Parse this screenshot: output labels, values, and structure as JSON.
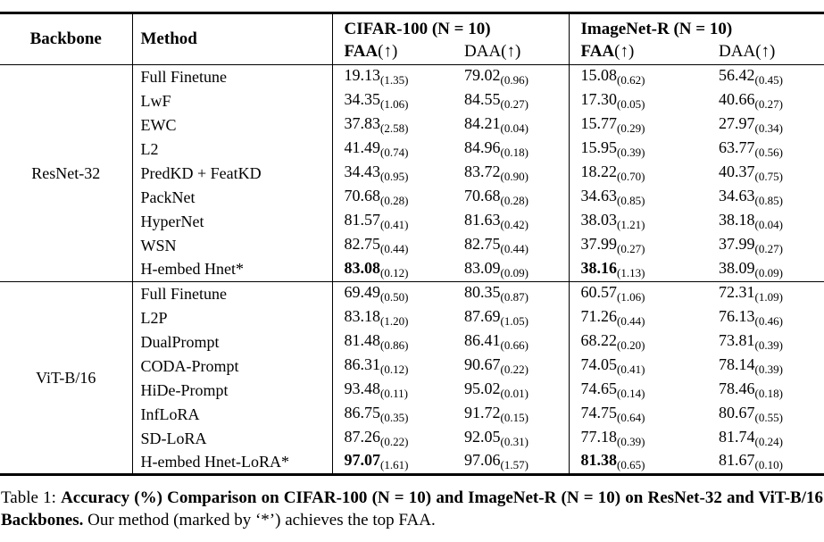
{
  "table": {
    "header": {
      "backbone": "Backbone",
      "method": "Method",
      "groups": [
        {
          "title": "CIFAR-100 (N = 10)"
        },
        {
          "title": "ImageNet-R (N = 10)"
        }
      ],
      "subcols": [
        {
          "label": "FAA",
          "arrow": "(↑)",
          "bold": true
        },
        {
          "label": "DAA",
          "arrow": "(↑)",
          "bold": false
        },
        {
          "label": "FAA",
          "arrow": "(↑)",
          "bold": true
        },
        {
          "label": "DAA",
          "arrow": "(↑)",
          "bold": false
        }
      ]
    },
    "blocks": [
      {
        "backbone": "ResNet-32",
        "rows": [
          {
            "method": "Full Finetune",
            "cells": [
              {
                "v": "19.13",
                "s": "(1.35)",
                "b": false
              },
              {
                "v": "79.02",
                "s": "(0.96)",
                "b": false
              },
              {
                "v": "15.08",
                "s": "(0.62)",
                "b": false
              },
              {
                "v": "56.42",
                "s": "(0.45)",
                "b": false
              }
            ]
          },
          {
            "method": "LwF",
            "cells": [
              {
                "v": "34.35",
                "s": "(1.06)",
                "b": false
              },
              {
                "v": "84.55",
                "s": "(0.27)",
                "b": false
              },
              {
                "v": "17.30",
                "s": "(0.05)",
                "b": false
              },
              {
                "v": "40.66",
                "s": "(0.27)",
                "b": false
              }
            ]
          },
          {
            "method": "EWC",
            "cells": [
              {
                "v": "37.83",
                "s": "(2.58)",
                "b": false
              },
              {
                "v": "84.21",
                "s": "(0.04)",
                "b": false
              },
              {
                "v": "15.77",
                "s": "(0.29)",
                "b": false
              },
              {
                "v": "27.97",
                "s": "(0.34)",
                "b": false
              }
            ]
          },
          {
            "method": "L2",
            "cells": [
              {
                "v": "41.49",
                "s": "(0.74)",
                "b": false
              },
              {
                "v": "84.96",
                "s": "(0.18)",
                "b": false
              },
              {
                "v": "15.95",
                "s": "(0.39)",
                "b": false
              },
              {
                "v": "63.77",
                "s": "(0.56)",
                "b": false
              }
            ]
          },
          {
            "method": "PredKD + FeatKD",
            "cells": [
              {
                "v": "34.43",
                "s": "(0.95)",
                "b": false
              },
              {
                "v": "83.72",
                "s": "(0.90)",
                "b": false
              },
              {
                "v": "18.22",
                "s": "(0.70)",
                "b": false
              },
              {
                "v": "40.37",
                "s": "(0.75)",
                "b": false
              }
            ]
          },
          {
            "method": "PackNet",
            "cells": [
              {
                "v": "70.68",
                "s": "(0.28)",
                "b": false
              },
              {
                "v": "70.68",
                "s": "(0.28)",
                "b": false
              },
              {
                "v": "34.63",
                "s": "(0.85)",
                "b": false
              },
              {
                "v": "34.63",
                "s": "(0.85)",
                "b": false
              }
            ]
          },
          {
            "method": "HyperNet",
            "cells": [
              {
                "v": "81.57",
                "s": "(0.41)",
                "b": false
              },
              {
                "v": "81.63",
                "s": "(0.42)",
                "b": false
              },
              {
                "v": "38.03",
                "s": "(1.21)",
                "b": false
              },
              {
                "v": "38.18",
                "s": "(0.04)",
                "b": false
              }
            ]
          },
          {
            "method": "WSN",
            "cells": [
              {
                "v": "82.75",
                "s": "(0.44)",
                "b": false
              },
              {
                "v": "82.75",
                "s": "(0.44)",
                "b": false
              },
              {
                "v": "37.99",
                "s": "(0.27)",
                "b": false
              },
              {
                "v": "37.99",
                "s": "(0.27)",
                "b": false
              }
            ]
          },
          {
            "method": "H-embed Hnet*",
            "cells": [
              {
                "v": "83.08",
                "s": "(0.12)",
                "b": true
              },
              {
                "v": "83.09",
                "s": "(0.09)",
                "b": false
              },
              {
                "v": "38.16",
                "s": "(1.13)",
                "b": true
              },
              {
                "v": "38.09",
                "s": "(0.09)",
                "b": false
              }
            ]
          }
        ]
      },
      {
        "backbone": "ViT-B/16",
        "rows": [
          {
            "method": "Full Finetune",
            "cells": [
              {
                "v": "69.49",
                "s": "(0.50)",
                "b": false
              },
              {
                "v": "80.35",
                "s": "(0.87)",
                "b": false
              },
              {
                "v": "60.57",
                "s": "(1.06)",
                "b": false
              },
              {
                "v": "72.31",
                "s": "(1.09)",
                "b": false
              }
            ]
          },
          {
            "method": "L2P",
            "cells": [
              {
                "v": "83.18",
                "s": "(1.20)",
                "b": false
              },
              {
                "v": "87.69",
                "s": "(1.05)",
                "b": false
              },
              {
                "v": "71.26",
                "s": "(0.44)",
                "b": false
              },
              {
                "v": "76.13",
                "s": "(0.46)",
                "b": false
              }
            ]
          },
          {
            "method": "DualPrompt",
            "cells": [
              {
                "v": "81.48",
                "s": "(0.86)",
                "b": false
              },
              {
                "v": "86.41",
                "s": "(0.66)",
                "b": false
              },
              {
                "v": "68.22",
                "s": "(0.20)",
                "b": false
              },
              {
                "v": "73.81",
                "s": "(0.39)",
                "b": false
              }
            ]
          },
          {
            "method": "CODA-Prompt",
            "cells": [
              {
                "v": "86.31",
                "s": "(0.12)",
                "b": false
              },
              {
                "v": "90.67",
                "s": "(0.22)",
                "b": false
              },
              {
                "v": "74.05",
                "s": "(0.41)",
                "b": false
              },
              {
                "v": "78.14",
                "s": "(0.39)",
                "b": false
              }
            ]
          },
          {
            "method": "HiDe-Prompt",
            "cells": [
              {
                "v": "93.48",
                "s": "(0.11)",
                "b": false
              },
              {
                "v": "95.02",
                "s": "(0.01)",
                "b": false
              },
              {
                "v": "74.65",
                "s": "(0.14)",
                "b": false
              },
              {
                "v": "78.46",
                "s": "(0.18)",
                "b": false
              }
            ]
          },
          {
            "method": "InfLoRA",
            "cells": [
              {
                "v": "86.75",
                "s": "(0.35)",
                "b": false
              },
              {
                "v": "91.72",
                "s": "(0.15)",
                "b": false
              },
              {
                "v": "74.75",
                "s": "(0.64)",
                "b": false
              },
              {
                "v": "80.67",
                "s": "(0.55)",
                "b": false
              }
            ]
          },
          {
            "method": "SD-LoRA",
            "cells": [
              {
                "v": "87.26",
                "s": "(0.22)",
                "b": false
              },
              {
                "v": "92.05",
                "s": "(0.31)",
                "b": false
              },
              {
                "v": "77.18",
                "s": "(0.39)",
                "b": false
              },
              {
                "v": "81.74",
                "s": "(0.24)",
                "b": false
              }
            ]
          },
          {
            "method": "H-embed Hnet-LoRA*",
            "cells": [
              {
                "v": "97.07",
                "s": "(1.61)",
                "b": true
              },
              {
                "v": "97.06",
                "s": "(1.57)",
                "b": false
              },
              {
                "v": "81.38",
                "s": "(0.65)",
                "b": true
              },
              {
                "v": "81.67",
                "s": "(0.10)",
                "b": false
              }
            ]
          }
        ]
      }
    ]
  },
  "caption": {
    "prefix": "Table 1: ",
    "bold": "Accuracy (%) Comparison on CIFAR-100 (N = 10) and ImageNet-R (N = 10) on ResNet-32 and ViT-B/16 Backbones.",
    "rest": " Our method (marked by ‘*’) achieves the top FAA."
  }
}
